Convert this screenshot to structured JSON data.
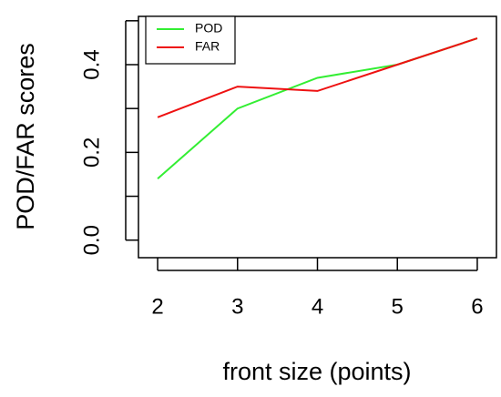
{
  "chart_data": {
    "type": "line",
    "x_label": "front size (points)",
    "y_label": "POD/FAR scores",
    "x": [
      2,
      3,
      4,
      5,
      6
    ],
    "series": [
      {
        "name": "POD",
        "color": "#33ee33",
        "values": [
          0.14,
          0.3,
          0.37,
          0.4,
          0.46
        ]
      },
      {
        "name": "FAR",
        "color": "#ee1111",
        "values": [
          0.28,
          0.35,
          0.34,
          0.4,
          0.46
        ]
      }
    ],
    "xlim": [
      1.76,
      6.24
    ],
    "xticks": [
      2,
      3,
      4,
      5,
      6
    ],
    "ylim": [
      -0.04,
      0.51
    ],
    "yticks": [
      {
        "value": 0,
        "label": "0.0"
      },
      {
        "value": 0.1,
        "label": null
      },
      {
        "value": 0.2,
        "label": "0.2"
      },
      {
        "value": 0.3,
        "label": null
      },
      {
        "value": 0.4,
        "label": "0.4"
      },
      {
        "value": 0.5,
        "label": null
      }
    ],
    "legend": "top-left",
    "grid": false
  }
}
